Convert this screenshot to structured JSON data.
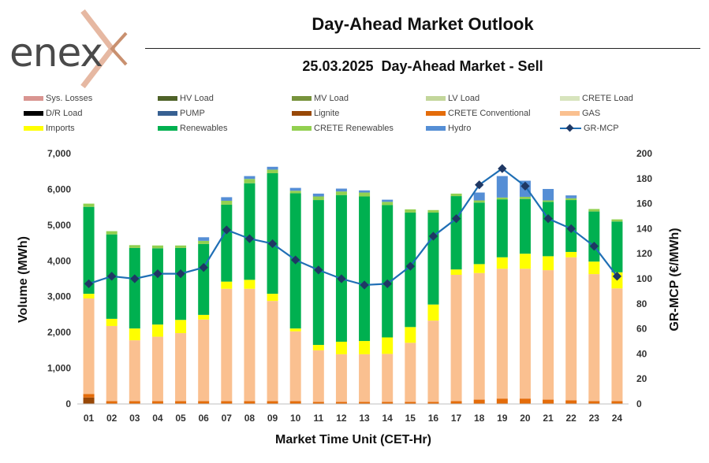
{
  "header": {
    "logo_text": "enex",
    "title": "Day-Ahead Market Outlook",
    "subtitle": "25.03.2025  Day-Ahead Market - Sell"
  },
  "legend": [
    {
      "label": "Sys. Losses",
      "color": "#d99591",
      "kind": "bar"
    },
    {
      "label": "HV Load",
      "color": "#4f6228",
      "kind": "bar"
    },
    {
      "label": "MV Load",
      "color": "#77933c",
      "kind": "bar"
    },
    {
      "label": "LV Load",
      "color": "#c3d69b",
      "kind": "bar"
    },
    {
      "label": "CRETE Load",
      "color": "#d7e4bd",
      "kind": "bar"
    },
    {
      "label": "D/R Load",
      "color": "#000000",
      "kind": "bar"
    },
    {
      "label": "PUMP",
      "color": "#376092",
      "kind": "bar"
    },
    {
      "label": "Lignite",
      "color": "#984807",
      "kind": "bar"
    },
    {
      "label": "CRETE Conventional",
      "color": "#e46c0a",
      "kind": "bar"
    },
    {
      "label": "GAS",
      "color": "#fac090",
      "kind": "bar"
    },
    {
      "label": "Imports",
      "color": "#ffff00",
      "kind": "bar"
    },
    {
      "label": "Renewables",
      "color": "#00b050",
      "kind": "bar"
    },
    {
      "label": "CRETE Renewables",
      "color": "#92d050",
      "kind": "bar"
    },
    {
      "label": "Hydro",
      "color": "#558ed5",
      "kind": "bar"
    },
    {
      "label": "GR-MCP",
      "color": "#1f6fb5",
      "kind": "line"
    }
  ],
  "chart_data": {
    "type": "bar",
    "stacked": true,
    "xlabel": "Market Time Unit (CET-Hr)",
    "ylabel": "Volume (MWh)",
    "y2label": "GR-MCP (€/MWh)",
    "ylim": [
      0,
      7000
    ],
    "y2lim": [
      0,
      200
    ],
    "yticks": [
      "0",
      "1,000",
      "2,000",
      "3,000",
      "4,000",
      "5,000",
      "6,000",
      "7,000"
    ],
    "y2ticks": [
      "0",
      "20",
      "40",
      "60",
      "80",
      "100",
      "120",
      "140",
      "160",
      "180",
      "200"
    ],
    "categories": [
      "01",
      "02",
      "03",
      "04",
      "05",
      "06",
      "07",
      "08",
      "09",
      "10",
      "11",
      "12",
      "13",
      "14",
      "15",
      "16",
      "17",
      "18",
      "19",
      "20",
      "21",
      "22",
      "23",
      "24"
    ],
    "series": [
      {
        "name": "Lignite",
        "color": "#984807",
        "values": [
          180,
          0,
          0,
          0,
          0,
          0,
          0,
          0,
          0,
          0,
          0,
          0,
          0,
          0,
          0,
          0,
          0,
          0,
          0,
          0,
          0,
          0,
          0,
          0
        ]
      },
      {
        "name": "CRETE Conventional",
        "color": "#e46c0a",
        "values": [
          100,
          80,
          80,
          80,
          80,
          80,
          80,
          80,
          80,
          80,
          60,
          60,
          60,
          60,
          60,
          60,
          80,
          120,
          150,
          150,
          120,
          100,
          80,
          80
        ]
      },
      {
        "name": "GAS",
        "color": "#fac090",
        "values": [
          2670,
          2100,
          1700,
          1800,
          1900,
          2280,
          3140,
          3140,
          2800,
          1950,
          1440,
          1330,
          1330,
          1340,
          1650,
          2270,
          3530,
          3540,
          3630,
          3630,
          3620,
          4000,
          3550,
          3150
        ]
      },
      {
        "name": "Imports",
        "color": "#ffff00",
        "values": [
          130,
          200,
          330,
          340,
          370,
          130,
          200,
          250,
          200,
          80,
          150,
          350,
          370,
          460,
          440,
          450,
          150,
          250,
          320,
          420,
          390,
          150,
          350,
          450
        ]
      },
      {
        "name": "Renewables",
        "color": "#00b050",
        "values": [
          2430,
          2360,
          2250,
          2130,
          2010,
          1980,
          2150,
          2700,
          3370,
          3780,
          4050,
          4100,
          4040,
          3700,
          3200,
          2570,
          2050,
          1720,
          1620,
          1530,
          1520,
          1450,
          1400,
          1420
        ]
      },
      {
        "name": "CRETE Renewables",
        "color": "#92d050",
        "values": [
          90,
          90,
          80,
          80,
          70,
          90,
          110,
          120,
          100,
          70,
          100,
          100,
          110,
          90,
          90,
          70,
          70,
          60,
          50,
          60,
          40,
          50,
          70,
          60
        ]
      },
      {
        "name": "Hydro",
        "color": "#558ed5",
        "values": [
          0,
          0,
          0,
          0,
          0,
          100,
          100,
          80,
          80,
          80,
          80,
          80,
          60,
          60,
          0,
          0,
          0,
          220,
          600,
          450,
          320,
          80,
          0,
          0
        ]
      }
    ],
    "line": {
      "name": "GR-MCP",
      "color": "#1f6fb5",
      "axis": "right",
      "values": [
        96,
        102,
        100,
        104,
        104,
        109,
        139,
        132,
        128,
        115,
        107,
        100,
        95,
        96,
        110,
        134,
        148,
        175,
        188,
        174,
        148,
        140,
        126,
        102
      ]
    }
  }
}
